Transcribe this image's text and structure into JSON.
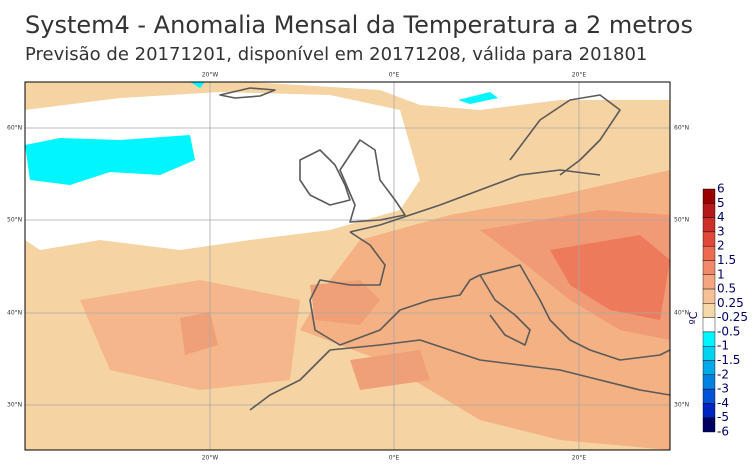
{
  "title": "System4 - Anomalia Mensal da Temperatura a 2 metros",
  "subtitle": "Previsão de 20171201, disponível em 20171208, válida para 201801",
  "lon_labels": [
    "20°W",
    "0°E",
    "20°E"
  ],
  "lat_labels": [
    "60°N",
    "50°N",
    "40°N",
    "30°N"
  ],
  "colorbar": {
    "unit": "ºC",
    "levels": [
      6,
      5,
      4,
      3,
      2,
      1.5,
      1,
      0.5,
      0.25,
      -0.25,
      -0.5,
      -1,
      -1.5,
      -2,
      -3,
      -4,
      -5,
      -6
    ],
    "colors": [
      "#990000",
      "#b51a1a",
      "#cc2f2a",
      "#e0483a",
      "#ec6a50",
      "#f08a6a",
      "#f4a582",
      "#f6c196",
      "#f6d9ab",
      "#ffffff",
      "#00f5ff",
      "#00d2f2",
      "#00aae8",
      "#0082e0",
      "#0052d6",
      "#0024c0",
      "#000060"
    ]
  }
}
